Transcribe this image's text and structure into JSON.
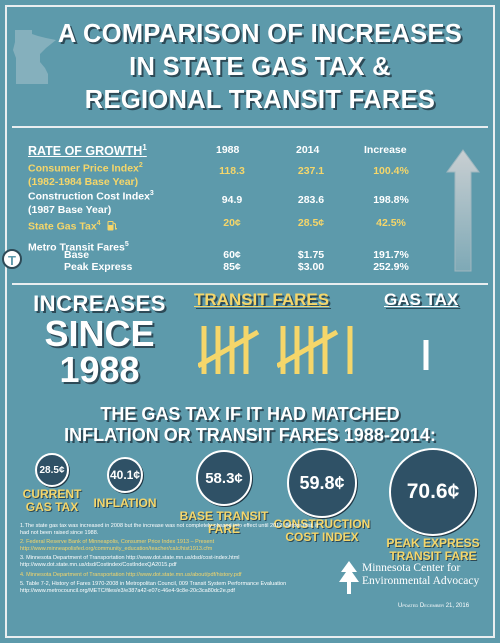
{
  "title": {
    "line1": "A COMPARISON OF INCREASES",
    "line2": "IN STATE GAS TAX &",
    "line3": "REGIONAL TRANSIT FARES"
  },
  "table": {
    "header_label": "RATE OF GROWTH",
    "header_sup": "1",
    "col_1988": "1988",
    "col_2014": "2014",
    "col_increase": "Increase",
    "rows": [
      {
        "label1": "Consumer Price Index",
        "sup": "2",
        "label2": "(1982-1984 Base Year)",
        "v1988": "118.3",
        "v2014": "237.1",
        "inc": "100.4%"
      },
      {
        "label1": "Construction Cost Index",
        "sup": "3",
        "label2": "(1987 Base Year)",
        "v1988": "94.9",
        "v2014": "283.6",
        "inc": "198.8%"
      },
      {
        "label1": "State Gas Tax",
        "sup": "4",
        "v1988": "20¢",
        "v2014": "28.5¢",
        "inc": "42.5%"
      },
      {
        "label1": "Metro Transit Fares",
        "sup": "5"
      }
    ],
    "base": {
      "label": "Base",
      "v1988": "60¢",
      "v2014": "$1.75",
      "inc": "191.7%"
    },
    "peak": {
      "label": "Peak Express",
      "v1988": "85¢",
      "v2014": "$3.00",
      "inc": "252.9%"
    },
    "transit_icon_letter": "T"
  },
  "increases": {
    "line1": "INCREASES",
    "line2": "SINCE",
    "line3": "1988",
    "transit_fares": "TRANSIT FARES",
    "gas_tax": "GAS TAX",
    "transit_tally_count": 11,
    "gas_tax_tally_count": 1
  },
  "matched": {
    "line1": "THE GAS TAX IF IT HAD MATCHED",
    "line2": "INFLATION OR TRANSIT FARES 1988-2014:"
  },
  "bubbles": [
    {
      "value": "28.5¢",
      "label1": "CURRENT",
      "label2": "GAS TAX"
    },
    {
      "value": "40.1¢",
      "label1": "INFLATION",
      "label2": ""
    },
    {
      "value": "58.3¢",
      "label1": "BASE TRANSIT",
      "label2": "FARE"
    },
    {
      "value": "59.8¢",
      "label1": "CONSTRUCTION",
      "label2": "COST INDEX"
    },
    {
      "value": "70.6¢",
      "label1": "PEAK EXPRESS",
      "label2": "TRANSIT FARE"
    }
  ],
  "notes": [
    {
      "text": "1.The state gas tax was increased in 2008 but the increase was not completely phased into effect until 2012. Before that, it had not been raised since 1988."
    },
    {
      "text": "2. Federal Reserve Bank of Minneapolis, Consumer Price Index 1913 – Present http://www.minneapolisfed.org/community_education/teacher/calc/hist1913.cfm"
    },
    {
      "text": "3. Minnesota Department of Transportation http://www.dot.state.mn.us/dsd/cost-index.html http://www.dot.state.mn.us/dsd/Costindex/CostIndexQA2015.pdf"
    },
    {
      "text": "4. Minnesota Department of Transportation http://www.dot.state.mn.us/about/pdf/history.pdf"
    },
    {
      "text": "5. Table 7-2, History of Fares 1970-2008 in Metropolitan Council, 009 Transit System Performance Evaluation http://www.metrocouncil.org/METC/files/e3/e387a42-e07c-46e4-9c8e-20c3ca80dc2e.pdf"
    }
  ],
  "org": {
    "line1": "Minnesota Center for",
    "line2": "Environmental Advocacy"
  },
  "updated": "Updated December 21, 2016",
  "colors": {
    "background": "#5d9aab",
    "accent_yellow": "#f5d66a",
    "bubble": "#2f5166"
  }
}
